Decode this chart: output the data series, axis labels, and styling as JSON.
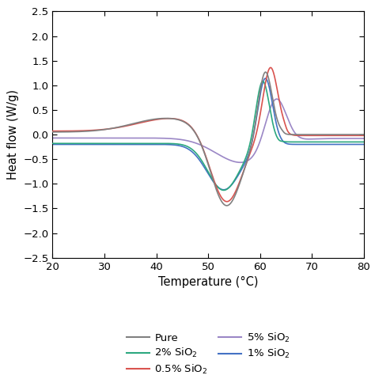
{
  "xlim": [
    20,
    80
  ],
  "ylim": [
    -2.5,
    2.5
  ],
  "xticks": [
    20,
    30,
    40,
    50,
    60,
    70,
    80
  ],
  "yticks": [
    -2.5,
    -2.0,
    -1.5,
    -1.0,
    -0.5,
    0.0,
    0.5,
    1.0,
    1.5,
    2.0,
    2.5
  ],
  "xlabel": "Temperature (°C)",
  "ylabel": "Heat flow (W/g)",
  "colors": {
    "Pure": "#808080",
    "0.5% SiO2": "#d9534f",
    "1% SiO2": "#4472c4",
    "2% SiO2": "#2ca87f",
    "5% SiO2": "#9b87c6"
  },
  "figsize": [
    4.74,
    4.79
  ],
  "dpi": 100
}
